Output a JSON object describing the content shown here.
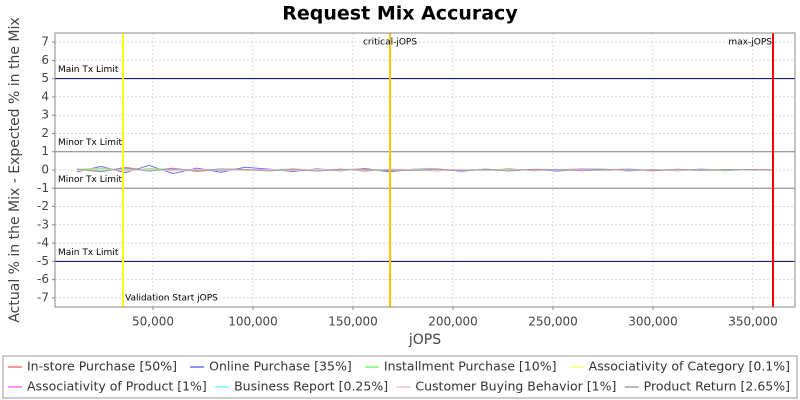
{
  "chart_data": {
    "type": "line",
    "title": "Request Mix Accuracy",
    "x_label": "jOPS",
    "y_label": "Actual % in the Mix - Expected % in the Mix",
    "xlim": [
      1000,
      371000
    ],
    "ylim": [
      -7.5,
      7.5
    ],
    "xticks": [
      {
        "value": 50000,
        "label": "50,000"
      },
      {
        "value": 100000,
        "label": "100,000"
      },
      {
        "value": 150000,
        "label": "150,000"
      },
      {
        "value": 200000,
        "label": "200,000"
      },
      {
        "value": 250000,
        "label": "250,000"
      },
      {
        "value": 300000,
        "label": "300,000"
      },
      {
        "value": 350000,
        "label": "350,000"
      }
    ],
    "yticks": [
      -7,
      -6,
      -5,
      -4,
      -3,
      -2,
      -1,
      0,
      1,
      2,
      3,
      4,
      5,
      6,
      7
    ],
    "grid": true,
    "legend": "bottom",
    "x": [
      12000,
      24000,
      36000,
      48000,
      60000,
      72000,
      84000,
      96000,
      108000,
      120000,
      132000,
      144000,
      156000,
      168000,
      180000,
      192000,
      204000,
      216000,
      228000,
      240000,
      252000,
      264000,
      276000,
      288000,
      300000,
      312000,
      324000,
      336000,
      348000,
      360000
    ],
    "series": [
      {
        "name": "In-store Purchase [50%]",
        "color": "#ff7070",
        "values": [
          0.05,
          -0.1,
          0.15,
          -0.05,
          0.1,
          -0.08,
          0.05,
          0.02,
          -0.04,
          0.06,
          -0.03,
          0.05,
          -0.06,
          0.04,
          0.02,
          -0.05,
          0.03,
          -0.02,
          0.06,
          -0.04,
          0.02,
          0.05,
          -0.03,
          0.04,
          -0.05,
          0.03,
          0.02,
          -0.04,
          0.03,
          0.01
        ]
      },
      {
        "name": "Online Purchase [35%]",
        "color": "#7070ff",
        "values": [
          -0.1,
          0.2,
          -0.15,
          0.25,
          -0.2,
          0.1,
          -0.12,
          0.15,
          0.05,
          -0.08,
          0.06,
          -0.05,
          0.08,
          -0.1,
          0.04,
          0.06,
          -0.07,
          0.05,
          -0.04,
          0.03,
          -0.06,
          0.05,
          0.04,
          -0.05,
          0.03,
          -0.04,
          0.05,
          -0.02,
          0.03,
          -0.01
        ]
      },
      {
        "name": "Installment Purchase [10%]",
        "color": "#70ff70",
        "values": [
          0.02,
          0.1,
          -0.05,
          0.08,
          0.03,
          -0.04,
          0.05,
          -0.03,
          0.02,
          0.04,
          -0.02,
          0.03,
          0.01,
          -0.03,
          0.02,
          0.03,
          -0.02,
          0.01,
          0.02,
          -0.01,
          0.03,
          -0.02,
          0.01,
          0.02,
          -0.01,
          0.02,
          0.01,
          -0.02,
          0.01,
          0
        ]
      },
      {
        "name": "Associativity of Category [0.1%]",
        "color": "#ffff70",
        "values": [
          0,
          0.01,
          -0.01,
          0,
          0.01,
          0,
          -0.01,
          0,
          0,
          0.01,
          0,
          -0.01,
          0,
          0,
          0.01,
          0,
          0,
          -0.01,
          0,
          0,
          0.01,
          0,
          0,
          0,
          -0.01,
          0,
          0,
          0.01,
          0,
          0
        ]
      },
      {
        "name": "Associativity of Product [1%]",
        "color": "#ff70ff",
        "values": [
          0.03,
          -0.04,
          0.05,
          -0.02,
          0.03,
          0.02,
          -0.03,
          0.01,
          0.02,
          -0.02,
          0.01,
          0.02,
          -0.01,
          0.01,
          -0.02,
          0.01,
          0.02,
          -0.01,
          0,
          0.01,
          -0.01,
          0.02,
          0,
          -0.01,
          0.01,
          0,
          -0.01,
          0.01,
          0,
          0.01
        ]
      },
      {
        "name": "Business Report [0.25%]",
        "color": "#70ffff",
        "values": [
          0.01,
          -0.02,
          0.03,
          0.01,
          -0.02,
          0.01,
          0,
          -0.01,
          0.01,
          0,
          0.01,
          -0.01,
          0,
          0.01,
          0,
          -0.01,
          0,
          0.01,
          0,
          0,
          -0.01,
          0,
          0.01,
          0,
          0,
          0.01,
          -0.01,
          0,
          0,
          0
        ]
      },
      {
        "name": "Customer Buying Behavior [1%]",
        "color": "#ffc0c0",
        "values": [
          -0.04,
          0.05,
          -0.03,
          0.04,
          -0.05,
          0.02,
          0.03,
          -0.02,
          0.01,
          -0.03,
          0.02,
          -0.01,
          0.03,
          -0.02,
          0.01,
          -0.02,
          0.02,
          0.01,
          -0.03,
          0.02,
          -0.01,
          0.01,
          -0.02,
          0.02,
          0.01,
          -0.02,
          0.01,
          0.02,
          -0.01,
          0
        ]
      },
      {
        "name": "Product Return [2.65%]",
        "color": "#a0a0a0",
        "values": [
          0.06,
          -0.08,
          0.1,
          -0.06,
          0.08,
          -0.05,
          0.06,
          0.03,
          -0.05,
          0.04,
          -0.06,
          0.03,
          0.05,
          -0.04,
          -0.03,
          0.05,
          -0.04,
          0.03,
          -0.05,
          0.04,
          0.03,
          -0.04,
          0.02,
          0.05,
          -0.03,
          0.04,
          -0.02,
          0.03,
          0.02,
          -0.01
        ]
      }
    ],
    "hlines": [
      {
        "value": 5,
        "label": "Main Tx Limit",
        "color": "#000060"
      },
      {
        "value": 1,
        "label": "Minor Tx Limit",
        "color": "#808080"
      },
      {
        "value": -1,
        "label": "Minor Tx Limit",
        "color": "#808080"
      },
      {
        "value": -5,
        "label": "Main Tx Limit",
        "color": "#000060"
      }
    ],
    "vlines": [
      {
        "value": 35000,
        "label": "Validation Start jOPS",
        "color": "#ffff00"
      },
      {
        "value": 168500,
        "label": "critical-jOPS",
        "color": "#ffc800"
      },
      {
        "value": 360000,
        "label": "max-jOPS",
        "color": "#ff0000"
      }
    ]
  }
}
